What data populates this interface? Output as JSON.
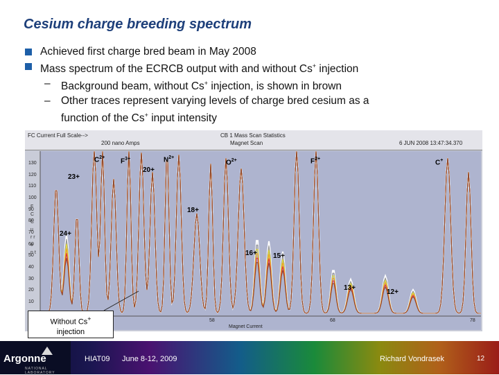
{
  "slide": {
    "title": "Cesium charge breeding spectrum",
    "bullet1": "Achieved first charge bred beam in May 2008",
    "bullet2_pre": "Mass spectrum of the ECRCB output with and without Cs",
    "bullet2_post": " injection",
    "sub1_pre": "Background beam, without Cs",
    "sub1_post": " injection, is shown in brown",
    "sub2_pre": "Other traces represent varying levels of charge bred cesium as a",
    "sub2_cont_pre": "function of the Cs",
    "sub2_cont_post": " input intensity",
    "sub_dash": "–",
    "plus": "+"
  },
  "figure": {
    "header_left": "FC Current Full Scale-->",
    "header_left2": "200 nano Amps",
    "header_center": "CB 1 Mass Scan Statistics",
    "header_center2": "Magnet Scan",
    "header_right": "6 JUN 2008 13:47:34.370",
    "y_title": "F C C u r r e n t",
    "y_ticks": [
      "130",
      "120",
      "110",
      "100",
      "90",
      "80",
      "70",
      "60",
      "50",
      "40",
      "30",
      "20",
      "10"
    ],
    "x_ticks": [
      "58",
      "68",
      "78"
    ],
    "x_title": "Magnet Current",
    "labels": {
      "c2": "C",
      "c2_sup": "2+",
      "f3": "F",
      "f3_sup": "3+",
      "n2": "N",
      "n2_sup": "2+",
      "o2": "O",
      "o2_sup": "2+",
      "f2": "F",
      "f2_sup": "2+",
      "c1": "C",
      "c1_sup": "+",
      "p20": "20+",
      "p23": "23+",
      "p18": "18+",
      "p24": "24+",
      "p16": "16+",
      "p15": "15+",
      "p13": "13+",
      "p12": "12+"
    },
    "callout_line1": "Without Cs",
    "callout_sup": "+",
    "callout_line2": "injection",
    "colors": {
      "background_trace": "#8b4a2b",
      "trace_red": "#e0303a",
      "trace_orange": "#f0a020",
      "trace_yellow": "#e8e030",
      "trace_gray": "#909090",
      "trace_white": "#ffffff"
    }
  },
  "footer": {
    "logo": "Argonne",
    "logo_sub": "NATIONAL LABORATORY",
    "conference": "HIAT09",
    "dates": "June 8-12, 2009",
    "author": "Richard Vondrasek",
    "page": "12"
  }
}
